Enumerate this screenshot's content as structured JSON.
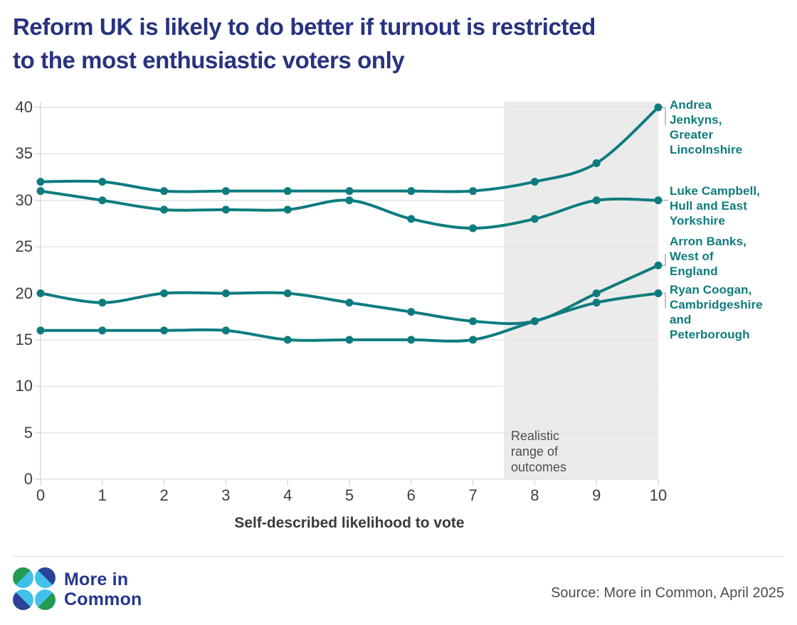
{
  "header": {
    "line1": "Reform UK is likely to do better if turnout is restricted",
    "line2": "to the most enthusiastic voters only"
  },
  "footer": {
    "brand_line1": "More in",
    "brand_line2": "Common",
    "source": "Source: More in Common, April 2025"
  },
  "colors": {
    "line": "#0e7c7e",
    "title_navy": "#27337f",
    "grid": "#e4e4e4",
    "axis": "#d9d9d9",
    "shading": "#ebebeb",
    "axis_text": "#3d3d3d",
    "annotation_text": "#4e4e4e",
    "connector": "#b3b3b3",
    "brand_navy": "#25368f",
    "logo_green": "#239a52",
    "logo_cyan": "#41c1e9",
    "logo_blue": "#2a4397",
    "source_text": "#4d4d4d"
  },
  "chart_data": {
    "type": "line",
    "title": "Reform UK is likely to do better if turnout is restricted to the most enthusiastic voters only",
    "xlabel": "Self-described likelihood to vote",
    "ylabel": "",
    "x": [
      0,
      1,
      2,
      3,
      4,
      5,
      6,
      7,
      8,
      9,
      10
    ],
    "xlim": [
      0,
      10
    ],
    "ylim": [
      0,
      40
    ],
    "yticks": [
      0,
      5,
      10,
      15,
      20,
      25,
      30,
      35,
      40
    ],
    "grid": true,
    "legend_position": "right",
    "highlight_region": {
      "x_start": 7.5,
      "x_end": 10,
      "label": "Realistic range of outcomes",
      "label_lines": [
        "Realistic",
        "range of",
        "outcomes"
      ]
    },
    "series": [
      {
        "name": "Andrea Jenkyns, Greater Lincolnshire",
        "label_lines": [
          "Andrea",
          "Jenkyns,",
          "Greater",
          "Lincolnshire"
        ],
        "values": [
          32,
          32,
          31,
          31,
          31,
          31,
          31,
          31,
          32,
          34,
          40
        ]
      },
      {
        "name": "Luke Campbell, Hull and East Yorkshire",
        "label_lines": [
          "Luke Campbell,",
          "Hull and East",
          "Yorkshire"
        ],
        "values": [
          31,
          30,
          29,
          29,
          29,
          30,
          28,
          27,
          28,
          30,
          30
        ]
      },
      {
        "name": "Arron Banks, West of England",
        "label_lines": [
          "Arron Banks,",
          "West of",
          "England"
        ],
        "values": [
          20,
          19,
          20,
          20,
          20,
          19,
          18,
          17,
          17,
          20,
          23
        ]
      },
      {
        "name": "Ryan Coogan, Cambridgeshire and Peterborough",
        "label_lines": [
          "Ryan Coogan,",
          "Cambridgeshire",
          "and",
          "Peterborough"
        ],
        "values": [
          16,
          16,
          16,
          16,
          15,
          15,
          15,
          15,
          17,
          19,
          20
        ]
      }
    ]
  }
}
